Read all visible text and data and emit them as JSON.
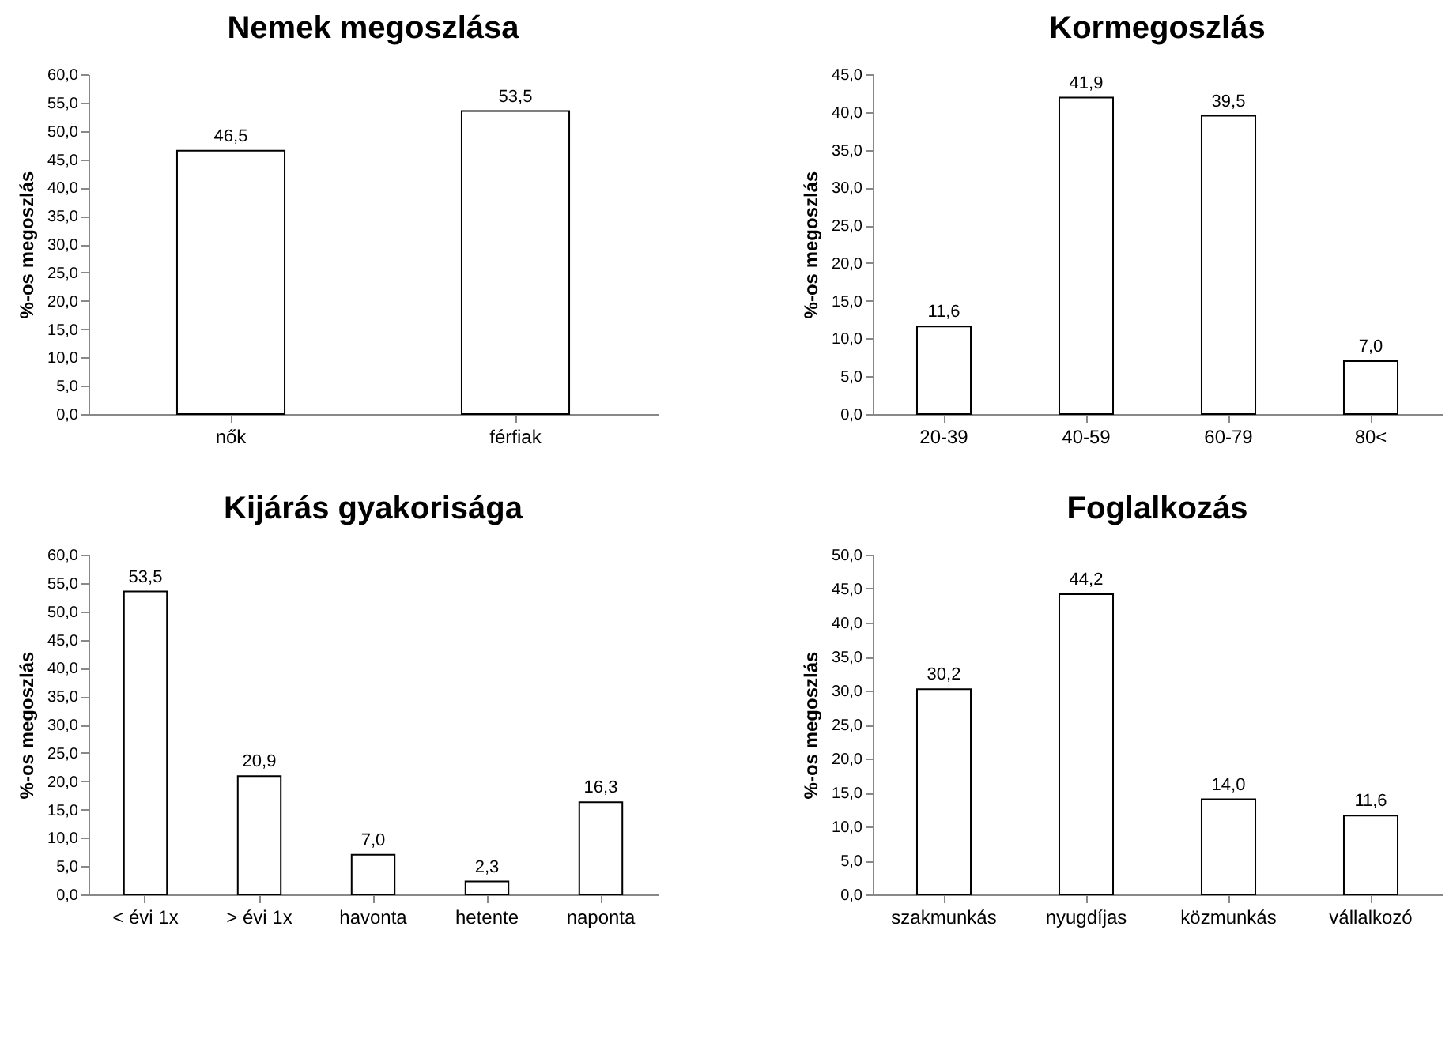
{
  "chart_data": [
    {
      "type": "bar",
      "title": "Nemek megoszlása",
      "ylabel": "%-os megoszlás",
      "categories": [
        "nők",
        "férfiak"
      ],
      "values": [
        46.5,
        53.5
      ],
      "value_labels": [
        "46,5",
        "53,5"
      ],
      "color": "#ffffff",
      "ylim": [
        0,
        60
      ],
      "yticks": [
        {
          "value": 0,
          "label": "0,0"
        },
        {
          "value": 5,
          "label": "5,0"
        },
        {
          "value": 10,
          "label": "10,0"
        },
        {
          "value": 15,
          "label": "15,0"
        },
        {
          "value": 20,
          "label": "20,0"
        },
        {
          "value": 25,
          "label": "25,0"
        },
        {
          "value": 30,
          "label": "30,0"
        },
        {
          "value": 35,
          "label": "35,0"
        },
        {
          "value": 40,
          "label": "40,0"
        },
        {
          "value": 45,
          "label": "45,0"
        },
        {
          "value": 50,
          "label": "50,0"
        },
        {
          "value": 55,
          "label": "55,0"
        },
        {
          "value": 60,
          "label": "60,0"
        }
      ],
      "grid": false
    },
    {
      "type": "bar",
      "title": "Kormegoszlás",
      "ylabel": "%-os megoszlás",
      "categories": [
        "20-39",
        "40-59",
        "60-79",
        "80<"
      ],
      "values": [
        11.6,
        41.9,
        39.5,
        7.0
      ],
      "value_labels": [
        "11,6",
        "41,9",
        "39,5",
        "7,0"
      ],
      "color": "#ffffff",
      "ylim": [
        0,
        45
      ],
      "yticks": [
        {
          "value": 0,
          "label": "0,0"
        },
        {
          "value": 5,
          "label": "5,0"
        },
        {
          "value": 10,
          "label": "10,0"
        },
        {
          "value": 15,
          "label": "15,0"
        },
        {
          "value": 20,
          "label": "20,0"
        },
        {
          "value": 25,
          "label": "25,0"
        },
        {
          "value": 30,
          "label": "30,0"
        },
        {
          "value": 35,
          "label": "35,0"
        },
        {
          "value": 40,
          "label": "40,0"
        },
        {
          "value": 45,
          "label": "45,0"
        }
      ],
      "grid": false
    },
    {
      "type": "bar",
      "title": "Kijárás gyakorisága",
      "ylabel": "%-os megoszlás",
      "categories": [
        "< évi 1x",
        "> évi 1x",
        "havonta",
        "hetente",
        "naponta"
      ],
      "values": [
        53.5,
        20.9,
        7.0,
        2.3,
        16.3
      ],
      "value_labels": [
        "53,5",
        "20,9",
        "7,0",
        "2,3",
        "16,3"
      ],
      "color": "#ffffff",
      "ylim": [
        0,
        60
      ],
      "yticks": [
        {
          "value": 0,
          "label": "0,0"
        },
        {
          "value": 5,
          "label": "5,0"
        },
        {
          "value": 10,
          "label": "10,0"
        },
        {
          "value": 15,
          "label": "15,0"
        },
        {
          "value": 20,
          "label": "20,0"
        },
        {
          "value": 25,
          "label": "25,0"
        },
        {
          "value": 30,
          "label": "30,0"
        },
        {
          "value": 35,
          "label": "35,0"
        },
        {
          "value": 40,
          "label": "40,0"
        },
        {
          "value": 45,
          "label": "45,0"
        },
        {
          "value": 50,
          "label": "50,0"
        },
        {
          "value": 55,
          "label": "55,0"
        },
        {
          "value": 60,
          "label": "60,0"
        }
      ],
      "grid": false
    },
    {
      "type": "bar",
      "title": "Foglalkozás",
      "ylabel": "%-os megoszlás",
      "categories": [
        "szakmunkás",
        "nyugdíjas",
        "közmunkás",
        "vállalkozó"
      ],
      "values": [
        30.2,
        44.2,
        14.0,
        11.6
      ],
      "value_labels": [
        "30,2",
        "44,2",
        "14,0",
        "11,6"
      ],
      "color": "#ffffff",
      "ylim": [
        0,
        50
      ],
      "yticks": [
        {
          "value": 0,
          "label": "0,0"
        },
        {
          "value": 5,
          "label": "5,0"
        },
        {
          "value": 10,
          "label": "10,0"
        },
        {
          "value": 15,
          "label": "15,0"
        },
        {
          "value": 20,
          "label": "20,0"
        },
        {
          "value": 25,
          "label": "25,0"
        },
        {
          "value": 30,
          "label": "30,0"
        },
        {
          "value": 35,
          "label": "35,0"
        },
        {
          "value": 40,
          "label": "40,0"
        },
        {
          "value": 45,
          "label": "45,0"
        },
        {
          "value": 50,
          "label": "50,0"
        }
      ],
      "grid": false
    }
  ]
}
